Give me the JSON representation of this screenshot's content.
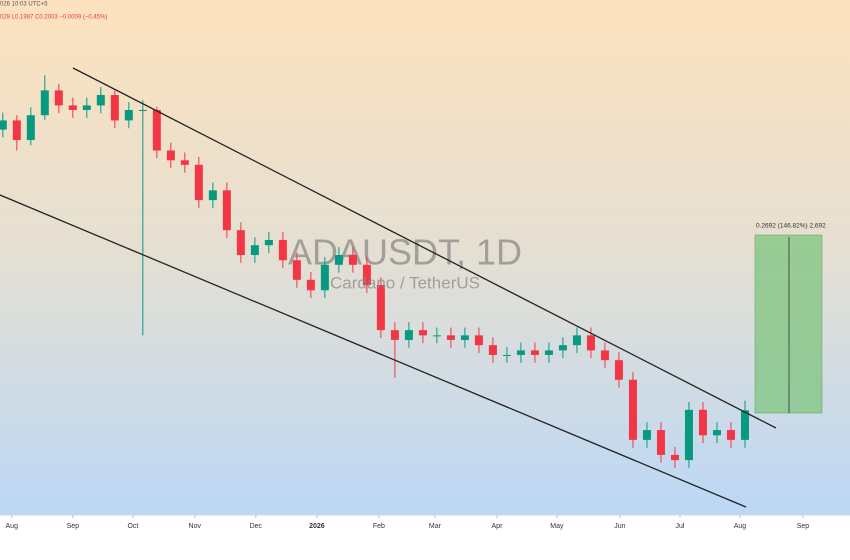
{
  "chart_data": {
    "type": "candlestick",
    "title": "ADAUSDT, 1D",
    "subtitle": "Cardano / TetherUS",
    "header": [
      "026 10:03 UTC+5",
      "029 L0.1987 C0.2003 −0.0009 (−0.45%)"
    ],
    "annotation": "0.2692 (146.82%) 2,692",
    "up_color": "#089981",
    "down_color": "#f23645",
    "xlim": [
      -0.2,
      60.5
    ],
    "ylim": [
      0.04,
      0.81
    ],
    "xticks": [
      {
        "value": 0.64,
        "label": "Aug"
      },
      {
        "value": 5,
        "label": "Sep"
      },
      {
        "value": 9.29,
        "label": "Oct"
      },
      {
        "value": 13.71,
        "label": "Nov"
      },
      {
        "value": 18.07,
        "label": "Dec"
      },
      {
        "value": 22.43,
        "label": "2026"
      },
      {
        "value": 26.86,
        "label": "Feb"
      },
      {
        "value": 30.86,
        "label": "Mar"
      },
      {
        "value": 35.29,
        "label": "Apr"
      },
      {
        "value": 39.57,
        "label": "May"
      },
      {
        "value": 44.07,
        "label": "Jun"
      },
      {
        "value": 48.36,
        "label": "Jul"
      },
      {
        "value": 52.64,
        "label": "Aug"
      },
      {
        "value": 57.14,
        "label": "Sep"
      }
    ],
    "open": [
      0.63,
      0.644,
      0.614,
      0.652,
      0.69,
      0.667,
      0.66,
      0.667,
      0.683,
      0.644,
      0.66,
      0.66,
      0.598,
      0.583,
      0.576,
      0.522,
      0.537,
      0.476,
      0.438,
      0.453,
      0.461,
      0.43,
      0.4,
      0.384,
      0.423,
      0.438,
      0.423,
      0.392,
      0.323,
      0.308,
      0.323,
      0.315,
      0.315,
      0.308,
      0.315,
      0.3,
      0.285,
      0.285,
      0.292,
      0.285,
      0.292,
      0.3,
      0.315,
      0.292,
      0.277,
      0.247,
      0.155,
      0.17,
      0.132,
      0.124,
      0.201,
      0.162,
      0.17,
      0.155
    ],
    "high": [
      0.656,
      0.652,
      0.664,
      0.713,
      0.7,
      0.679,
      0.679,
      0.695,
      0.69,
      0.672,
      0.675,
      0.665,
      0.61,
      0.595,
      0.588,
      0.549,
      0.549,
      0.488,
      0.465,
      0.473,
      0.473,
      0.442,
      0.412,
      0.435,
      0.45,
      0.45,
      0.435,
      0.404,
      0.335,
      0.335,
      0.335,
      0.327,
      0.327,
      0.327,
      0.327,
      0.312,
      0.297,
      0.304,
      0.304,
      0.304,
      0.312,
      0.327,
      0.327,
      0.304,
      0.289,
      0.259,
      0.182,
      0.182,
      0.144,
      0.213,
      0.213,
      0.182,
      0.182,
      0.215
    ],
    "low": [
      0.618,
      0.598,
      0.606,
      0.645,
      0.655,
      0.648,
      0.648,
      0.655,
      0.632,
      0.632,
      0.315,
      0.586,
      0.571,
      0.564,
      0.51,
      0.51,
      0.464,
      0.426,
      0.426,
      0.441,
      0.418,
      0.388,
      0.372,
      0.372,
      0.411,
      0.411,
      0.38,
      0.311,
      0.25,
      0.296,
      0.303,
      0.303,
      0.296,
      0.296,
      0.288,
      0.273,
      0.273,
      0.273,
      0.273,
      0.273,
      0.28,
      0.288,
      0.28,
      0.265,
      0.235,
      0.143,
      0.143,
      0.12,
      0.112,
      0.112,
      0.15,
      0.15,
      0.143,
      0.143
    ],
    "close": [
      0.644,
      0.614,
      0.652,
      0.69,
      0.667,
      0.66,
      0.667,
      0.683,
      0.644,
      0.66,
      0.66,
      0.598,
      0.583,
      0.576,
      0.522,
      0.537,
      0.476,
      0.438,
      0.453,
      0.461,
      0.43,
      0.4,
      0.384,
      0.423,
      0.438,
      0.423,
      0.392,
      0.323,
      0.308,
      0.323,
      0.315,
      0.315,
      0.308,
      0.315,
      0.3,
      0.285,
      0.285,
      0.292,
      0.285,
      0.292,
      0.3,
      0.315,
      0.292,
      0.277,
      0.247,
      0.155,
      0.17,
      0.132,
      0.124,
      0.201,
      0.162,
      0.17,
      0.155,
      0.2003
    ]
  }
}
